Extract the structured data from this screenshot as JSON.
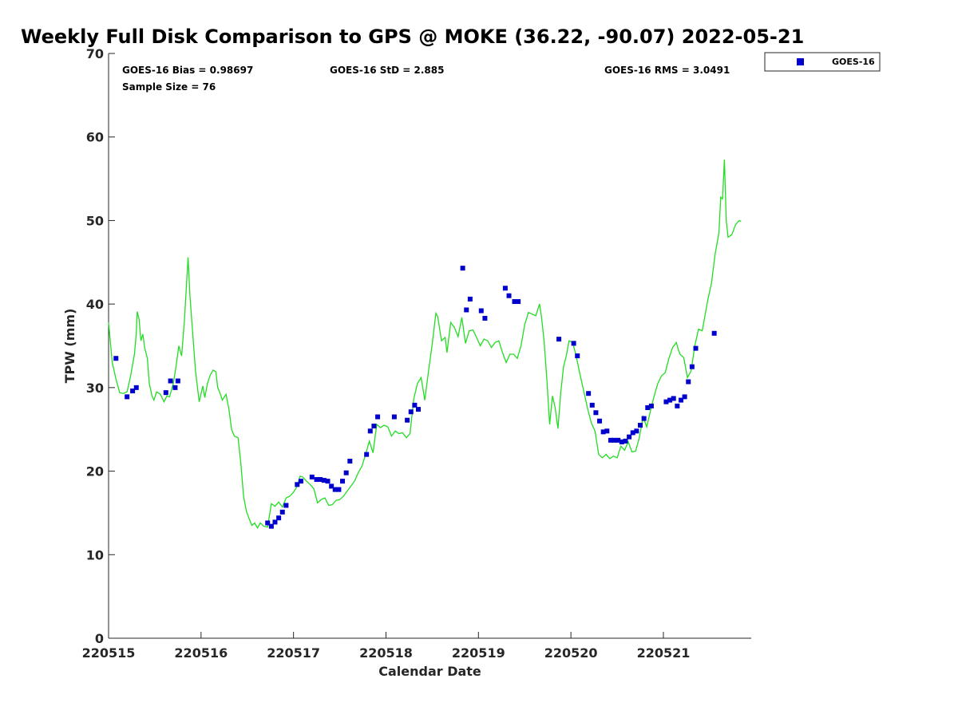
{
  "chart_data": {
    "type": "scatter",
    "title": "Weekly Full Disk Comparison to GPS @ MOKE (36.22, -90.07) 2022-05-21",
    "xlabel": "Calendar Date",
    "ylabel": "TPW (mm)",
    "xlim": [
      0,
      6.95
    ],
    "ylim": [
      0,
      70
    ],
    "x_ticks": [
      0,
      1,
      2,
      3,
      4,
      5,
      6
    ],
    "x_tick_labels": [
      "220515",
      "220516",
      "220517",
      "220518",
      "220519",
      "220520",
      "220521"
    ],
    "y_ticks": [
      0,
      10,
      20,
      30,
      40,
      50,
      60,
      70
    ],
    "y_tick_labels": [
      "0",
      "10",
      "20",
      "30",
      "40",
      "50",
      "60",
      "70"
    ],
    "stats": {
      "bias": "GOES-16 Bias = 0.98697",
      "std": "GOES-16 StD = 2.885",
      "rms": "GOES-16 RMS = 3.0491",
      "sample_size": "Sample Size = 76"
    },
    "legend": {
      "label": "GOES-16",
      "position": "top-right-outside"
    },
    "colors": {
      "goes": "#0000cc",
      "gps_line": "#22dd22"
    },
    "gps_line": {
      "name": "GPS",
      "points": [
        [
          0.0,
          37.8
        ],
        [
          0.04,
          33.0
        ],
        [
          0.08,
          31.0
        ],
        [
          0.12,
          29.4
        ],
        [
          0.16,
          29.3
        ],
        [
          0.2,
          29.5
        ],
        [
          0.24,
          31.5
        ],
        [
          0.28,
          34.0
        ],
        [
          0.3,
          36.5
        ],
        [
          0.31,
          39.1
        ],
        [
          0.33,
          38.2
        ],
        [
          0.35,
          35.6
        ],
        [
          0.37,
          36.4
        ],
        [
          0.39,
          34.8
        ],
        [
          0.42,
          33.5
        ],
        [
          0.44,
          30.5
        ],
        [
          0.47,
          29.0
        ],
        [
          0.49,
          28.5
        ],
        [
          0.52,
          29.5
        ],
        [
          0.56,
          29.2
        ],
        [
          0.6,
          28.3
        ],
        [
          0.63,
          29.0
        ],
        [
          0.66,
          28.9
        ],
        [
          0.7,
          30.5
        ],
        [
          0.73,
          32.6
        ],
        [
          0.76,
          35.0
        ],
        [
          0.79,
          33.8
        ],
        [
          0.82,
          38.0
        ],
        [
          0.86,
          45.6
        ],
        [
          0.88,
          41.0
        ],
        [
          0.91,
          36.5
        ],
        [
          0.94,
          32.0
        ],
        [
          0.98,
          28.3
        ],
        [
          1.02,
          30.2
        ],
        [
          1.04,
          28.8
        ],
        [
          1.07,
          30.5
        ],
        [
          1.1,
          31.5
        ],
        [
          1.13,
          32.1
        ],
        [
          1.16,
          31.9
        ],
        [
          1.18,
          30.0
        ],
        [
          1.2,
          29.5
        ],
        [
          1.23,
          28.5
        ],
        [
          1.27,
          29.2
        ],
        [
          1.3,
          27.5
        ],
        [
          1.33,
          25.0
        ],
        [
          1.36,
          24.2
        ],
        [
          1.4,
          24.0
        ],
        [
          1.43,
          21.0
        ],
        [
          1.46,
          17.0
        ],
        [
          1.49,
          15.2
        ],
        [
          1.52,
          14.3
        ],
        [
          1.55,
          13.5
        ],
        [
          1.58,
          13.8
        ],
        [
          1.61,
          13.2
        ],
        [
          1.64,
          13.8
        ],
        [
          1.68,
          13.4
        ],
        [
          1.72,
          13.3
        ],
        [
          1.76,
          16.1
        ],
        [
          1.8,
          15.8
        ],
        [
          1.84,
          16.3
        ],
        [
          1.88,
          15.7
        ],
        [
          1.92,
          16.8
        ],
        [
          1.96,
          17.0
        ],
        [
          2.0,
          17.5
        ],
        [
          2.04,
          18.2
        ],
        [
          2.07,
          19.4
        ],
        [
          2.1,
          19.3
        ],
        [
          2.14,
          18.8
        ],
        [
          2.18,
          18.4
        ],
        [
          2.22,
          17.9
        ],
        [
          2.26,
          16.2
        ],
        [
          2.3,
          16.6
        ],
        [
          2.34,
          16.8
        ],
        [
          2.38,
          15.9
        ],
        [
          2.42,
          16.0
        ],
        [
          2.46,
          16.5
        ],
        [
          2.5,
          16.6
        ],
        [
          2.54,
          17.0
        ],
        [
          2.58,
          17.6
        ],
        [
          2.62,
          18.2
        ],
        [
          2.66,
          18.8
        ],
        [
          2.7,
          19.8
        ],
        [
          2.74,
          20.6
        ],
        [
          2.78,
          22.0
        ],
        [
          2.82,
          23.6
        ],
        [
          2.86,
          22.2
        ],
        [
          2.9,
          25.6
        ],
        [
          2.94,
          25.2
        ],
        [
          2.98,
          25.5
        ],
        [
          3.02,
          25.3
        ],
        [
          3.06,
          24.2
        ],
        [
          3.1,
          24.8
        ],
        [
          3.14,
          24.5
        ],
        [
          3.18,
          24.6
        ],
        [
          3.22,
          24.0
        ],
        [
          3.26,
          24.5
        ],
        [
          3.3,
          28.6
        ],
        [
          3.34,
          30.5
        ],
        [
          3.38,
          31.2
        ],
        [
          3.42,
          28.5
        ],
        [
          3.46,
          32.0
        ],
        [
          3.5,
          35.2
        ],
        [
          3.54,
          38.9
        ],
        [
          3.56,
          38.5
        ],
        [
          3.6,
          35.6
        ],
        [
          3.64,
          36.0
        ],
        [
          3.66,
          34.2
        ],
        [
          3.7,
          37.8
        ],
        [
          3.74,
          37.2
        ],
        [
          3.78,
          36.1
        ],
        [
          3.82,
          38.4
        ],
        [
          3.86,
          35.3
        ],
        [
          3.9,
          36.8
        ],
        [
          3.94,
          36.9
        ],
        [
          3.98,
          36.0
        ],
        [
          4.02,
          35.0
        ],
        [
          4.06,
          35.8
        ],
        [
          4.1,
          35.6
        ],
        [
          4.14,
          34.8
        ],
        [
          4.18,
          35.4
        ],
        [
          4.22,
          35.6
        ],
        [
          4.26,
          34.2
        ],
        [
          4.3,
          33.0
        ],
        [
          4.34,
          34.0
        ],
        [
          4.38,
          34.0
        ],
        [
          4.42,
          33.5
        ],
        [
          4.46,
          35.0
        ],
        [
          4.5,
          37.5
        ],
        [
          4.54,
          39.0
        ],
        [
          4.58,
          38.8
        ],
        [
          4.62,
          38.6
        ],
        [
          4.66,
          40.0
        ],
        [
          4.68,
          38.6
        ],
        [
          4.71,
          35.6
        ],
        [
          4.74,
          31.0
        ],
        [
          4.77,
          25.6
        ],
        [
          4.8,
          29.0
        ],
        [
          4.83,
          27.6
        ],
        [
          4.86,
          25.1
        ],
        [
          4.89,
          29.4
        ],
        [
          4.92,
          32.5
        ],
        [
          4.95,
          33.8
        ],
        [
          4.98,
          35.6
        ],
        [
          5.02,
          35.4
        ],
        [
          5.06,
          33.6
        ],
        [
          5.1,
          31.5
        ],
        [
          5.14,
          29.5
        ],
        [
          5.18,
          27.5
        ],
        [
          5.22,
          25.8
        ],
        [
          5.26,
          24.8
        ],
        [
          5.3,
          22.0
        ],
        [
          5.34,
          21.6
        ],
        [
          5.38,
          22.0
        ],
        [
          5.42,
          21.5
        ],
        [
          5.46,
          21.8
        ],
        [
          5.5,
          21.6
        ],
        [
          5.54,
          23.0
        ],
        [
          5.58,
          22.5
        ],
        [
          5.62,
          23.5
        ],
        [
          5.66,
          22.3
        ],
        [
          5.7,
          22.4
        ],
        [
          5.74,
          24.0
        ],
        [
          5.78,
          26.5
        ],
        [
          5.82,
          25.3
        ],
        [
          5.86,
          27.2
        ],
        [
          5.9,
          29.0
        ],
        [
          5.94,
          30.5
        ],
        [
          5.98,
          31.4
        ],
        [
          6.02,
          31.8
        ],
        [
          6.06,
          33.5
        ],
        [
          6.1,
          34.8
        ],
        [
          6.14,
          35.4
        ],
        [
          6.16,
          34.6
        ],
        [
          6.18,
          34.0
        ],
        [
          6.22,
          33.6
        ],
        [
          6.26,
          31.2
        ],
        [
          6.3,
          32.0
        ],
        [
          6.34,
          35.0
        ],
        [
          6.38,
          37.0
        ],
        [
          6.42,
          36.8
        ],
        [
          6.44,
          38.0
        ],
        [
          6.48,
          40.5
        ],
        [
          6.52,
          42.5
        ],
        [
          6.56,
          46.0
        ],
        [
          6.6,
          48.5
        ],
        [
          6.62,
          52.8
        ],
        [
          6.64,
          52.6
        ],
        [
          6.66,
          57.3
        ],
        [
          6.68,
          50.0
        ],
        [
          6.7,
          48.0
        ],
        [
          6.74,
          48.3
        ],
        [
          6.78,
          49.5
        ],
        [
          6.82,
          50.0
        ],
        [
          6.84,
          49.9
        ]
      ]
    },
    "series": [
      {
        "name": "GOES-16",
        "points": [
          [
            0.08,
            33.5
          ],
          [
            0.2,
            28.9
          ],
          [
            0.26,
            29.6
          ],
          [
            0.3,
            30.0
          ],
          [
            0.62,
            29.4
          ],
          [
            0.67,
            30.8
          ],
          [
            0.72,
            30.0
          ],
          [
            0.75,
            30.8
          ],
          [
            1.72,
            13.8
          ],
          [
            1.76,
            13.4
          ],
          [
            1.8,
            13.9
          ],
          [
            1.84,
            14.4
          ],
          [
            1.88,
            15.1
          ],
          [
            1.92,
            15.9
          ],
          [
            2.04,
            18.4
          ],
          [
            2.08,
            18.8
          ],
          [
            2.2,
            19.3
          ],
          [
            2.25,
            19.0
          ],
          [
            2.29,
            19.0
          ],
          [
            2.33,
            18.9
          ],
          [
            2.37,
            18.8
          ],
          [
            2.41,
            18.2
          ],
          [
            2.45,
            17.8
          ],
          [
            2.49,
            17.8
          ],
          [
            2.53,
            18.8
          ],
          [
            2.57,
            19.8
          ],
          [
            2.61,
            21.2
          ],
          [
            2.79,
            22.0
          ],
          [
            2.83,
            24.8
          ],
          [
            2.87,
            25.4
          ],
          [
            2.91,
            26.5
          ],
          [
            3.09,
            26.5
          ],
          [
            3.23,
            26.1
          ],
          [
            3.27,
            27.1
          ],
          [
            3.31,
            27.9
          ],
          [
            3.35,
            27.4
          ],
          [
            3.83,
            44.3
          ],
          [
            3.87,
            39.3
          ],
          [
            3.91,
            40.6
          ],
          [
            4.03,
            39.2
          ],
          [
            4.07,
            38.3
          ],
          [
            4.29,
            41.9
          ],
          [
            4.33,
            41.0
          ],
          [
            4.39,
            40.3
          ],
          [
            4.43,
            40.3
          ],
          [
            4.87,
            35.8
          ],
          [
            5.03,
            35.3
          ],
          [
            5.07,
            33.8
          ],
          [
            5.19,
            29.3
          ],
          [
            5.23,
            27.9
          ],
          [
            5.27,
            27.0
          ],
          [
            5.31,
            26.0
          ],
          [
            5.35,
            24.7
          ],
          [
            5.39,
            24.8
          ],
          [
            5.43,
            23.7
          ],
          [
            5.47,
            23.7
          ],
          [
            5.51,
            23.7
          ],
          [
            5.55,
            23.5
          ],
          [
            5.59,
            23.6
          ],
          [
            5.63,
            24.1
          ],
          [
            5.67,
            24.6
          ],
          [
            5.71,
            24.8
          ],
          [
            5.75,
            25.5
          ],
          [
            5.79,
            26.3
          ],
          [
            5.83,
            27.6
          ],
          [
            5.87,
            27.8
          ],
          [
            6.03,
            28.3
          ],
          [
            6.07,
            28.5
          ],
          [
            6.11,
            28.7
          ],
          [
            6.15,
            27.8
          ],
          [
            6.19,
            28.5
          ],
          [
            6.23,
            28.9
          ],
          [
            6.27,
            30.7
          ],
          [
            6.31,
            32.5
          ],
          [
            6.35,
            34.7
          ],
          [
            6.55,
            36.5
          ]
        ]
      }
    ]
  }
}
